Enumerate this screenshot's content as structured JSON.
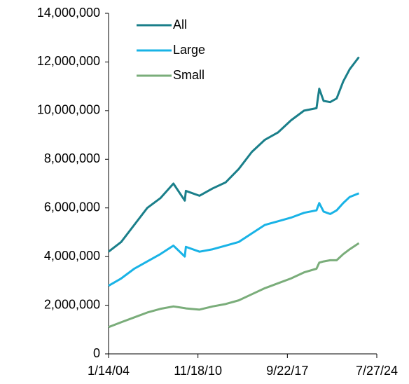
{
  "chart_data": {
    "type": "line",
    "x": [
      "2004-01-14",
      "2005-01-01",
      "2006-01-01",
      "2007-01-01",
      "2008-01-01",
      "2009-01-01",
      "2009-11-15",
      "2009-12-15",
      "2011-01-01",
      "2012-01-01",
      "2013-01-01",
      "2014-01-01",
      "2015-01-01",
      "2016-01-01",
      "2017-01-01",
      "2018-01-01",
      "2019-01-01",
      "2019-12-15",
      "2020-03-01",
      "2020-07-01",
      "2021-01-01",
      "2021-07-01",
      "2022-01-01",
      "2022-07-01",
      "2023-03-15"
    ],
    "series": [
      {
        "name": "All",
        "color": "#1a7f8a",
        "values": [
          4200000,
          4600000,
          5300000,
          6000000,
          6400000,
          7000000,
          6300000,
          6700000,
          6500000,
          6800000,
          7050000,
          7600000,
          8300000,
          8800000,
          9100000,
          9600000,
          10000000,
          10100000,
          10900000,
          10400000,
          10350000,
          10500000,
          11200000,
          11700000,
          12200000
        ]
      },
      {
        "name": "Large",
        "color": "#19b3e6",
        "values": [
          2800000,
          3100000,
          3500000,
          3800000,
          4100000,
          4450000,
          4000000,
          4400000,
          4200000,
          4300000,
          4450000,
          4600000,
          4950000,
          5300000,
          5450000,
          5600000,
          5800000,
          5900000,
          6200000,
          5850000,
          5750000,
          5900000,
          6200000,
          6450000,
          6600000
        ]
      },
      {
        "name": "Small",
        "color": "#7aad7a",
        "values": [
          1100000,
          1300000,
          1500000,
          1700000,
          1850000,
          1950000,
          1880000,
          1870000,
          1820000,
          1950000,
          2050000,
          2200000,
          2450000,
          2700000,
          2900000,
          3100000,
          3350000,
          3500000,
          3750000,
          3800000,
          3850000,
          3850000,
          4100000,
          4300000,
          4550000
        ]
      }
    ],
    "xlim": [
      "2004-01-14",
      "2024-07-27"
    ],
    "xticks": [
      {
        "value": "2004-01-14",
        "label": "1/14/04"
      },
      {
        "value": "2010-11-18",
        "label": "11/18/10"
      },
      {
        "value": "2017-09-22",
        "label": "9/22/17"
      },
      {
        "value": "2024-07-27",
        "label": "7/27/24"
      }
    ],
    "ylim": [
      0,
      14000000
    ],
    "yticks": [
      0,
      {
        "value": 2000000,
        "label": "2,000,000"
      },
      {
        "value": 4000000,
        "label": "4,000,000"
      },
      {
        "value": 6000000,
        "label": "6,000,000"
      },
      {
        "value": 8000000,
        "label": "8,000,000"
      },
      {
        "value": 10000000,
        "label": "10,000,000"
      },
      {
        "value": 12000000,
        "label": "12,000,000"
      },
      {
        "value": 14000000,
        "label": "14,000,000"
      }
    ],
    "legend": "upper left",
    "grid": false
  }
}
